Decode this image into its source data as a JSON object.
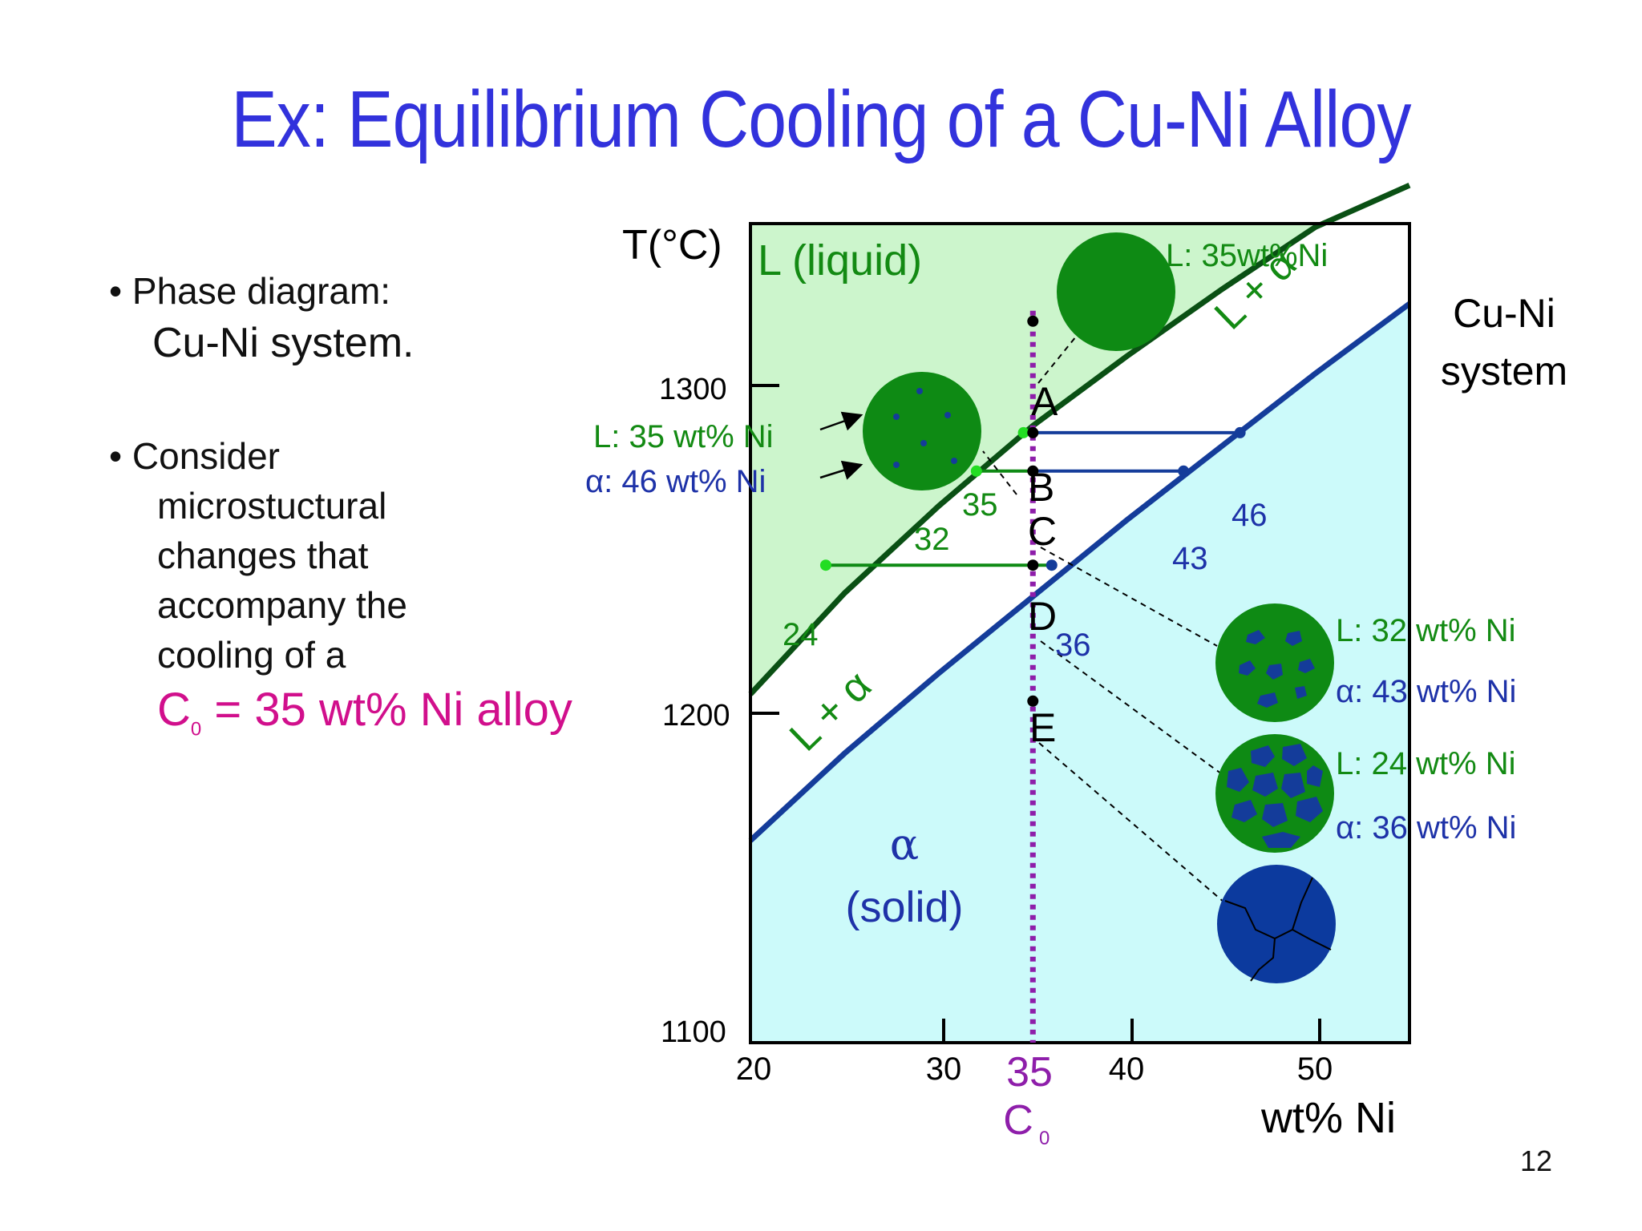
{
  "slide": {
    "title": "Ex:  Equilibrium Cooling of a Cu-Ni Alloy",
    "bullets": [
      {
        "marker": "•",
        "text": "Phase diagram:"
      },
      {
        "text": "Cu-Ni system."
      },
      {
        "marker": "•",
        "text": "Consider"
      },
      {
        "text": "microstuctural"
      },
      {
        "text": "changes that"
      },
      {
        "text": "accompany the"
      },
      {
        "text": "cooling of a"
      }
    ],
    "alloy": {
      "c": "C",
      "sub": "0",
      "rest": " = 35 wt% Ni alloy"
    },
    "page_number": "12"
  },
  "colors": {
    "title": "#3232dc",
    "liquid_region": "#ccf5cc",
    "solid_region": "#ccfafa",
    "liquidus": "#0a5014",
    "solidus": "#143c9a",
    "green_text": "#138a13",
    "blue_text": "#1e32a8",
    "magenta": "#d10f8c",
    "composition_line": "#8e1eaa",
    "liquid_grain": "#0e8a14",
    "solid_grain": "#0c3a9e",
    "bright_green_point": "#22dd22"
  },
  "diagram": {
    "y_axis_label": "T(°C)",
    "x_axis_label": "wt% Ni",
    "x_ticks": [
      "20",
      "30",
      "40",
      "50"
    ],
    "y_ticks": [
      "1300",
      "1200",
      "1100"
    ],
    "c0_value": "35",
    "c0_label": {
      "c": "C",
      "sub": "0"
    },
    "region_liquid": "L (liquid)",
    "region_two_phase": "L + α",
    "region_solid_symbol": "α",
    "region_solid_word": "(solid)",
    "system_label": [
      "Cu-Ni",
      "system"
    ],
    "points": [
      "A",
      "B",
      "C",
      "D",
      "E"
    ],
    "tie_lines": [
      {
        "point": "B",
        "liquid": "35",
        "solid": "46"
      },
      {
        "point": "C",
        "liquid": "32",
        "solid": "43"
      },
      {
        "point": "D",
        "liquid": "24",
        "solid": "36"
      }
    ],
    "annotations": {
      "a": "L: 35wt%Ni",
      "b_liquid": "L: 35 wt% Ni",
      "b_solid": "α: 46 wt% Ni",
      "c_liquid": "L: 32 wt% Ni",
      "c_solid": "α: 43 wt% Ni",
      "d_liquid": "L: 24 wt% Ni",
      "d_solid": "α: 36 wt% Ni"
    },
    "microstructure_icons": [
      "liquid-grain",
      "liquid-with-alpha-nuclei",
      "liquid-with-alpha-grains",
      "liquid-with-large-alpha-grains",
      "solid-alpha-grains"
    ]
  },
  "chart_data": {
    "type": "line",
    "title": "",
    "xlabel": "wt% Ni",
    "ylabel": "T(°C)",
    "xlim": [
      20,
      55
    ],
    "ylim": [
      1100,
      1335
    ],
    "series": [
      {
        "x": [
          20,
          25,
          30,
          35,
          40,
          45,
          50,
          55
        ],
        "y": [
          1200,
          1229,
          1254,
          1277,
          1297,
          1316,
          1334,
          1346
        ]
      },
      {
        "x": [
          20,
          25,
          30,
          35,
          40,
          45,
          50,
          55
        ],
        "y": [
          1158,
          1183,
          1206,
          1228,
          1250,
          1271,
          1292,
          1312
        ]
      }
    ],
    "composition_line": {
      "x": 35,
      "y": [
        1100,
        1310
      ]
    },
    "state_points": [
      {
        "label": "A",
        "x": 35,
        "y": 1307
      },
      {
        "label": "B",
        "x": 35,
        "y": 1275
      },
      {
        "label": "C",
        "x": 35,
        "y": 1264
      },
      {
        "label": "D",
        "x": 35,
        "y": 1237
      },
      {
        "label": "E",
        "x": 35,
        "y": 1198
      }
    ],
    "tie_lines": [
      {
        "T": 1275,
        "liquid": 35,
        "solid": 46
      },
      {
        "T": 1264,
        "liquid": 32,
        "solid": 43
      },
      {
        "T": 1237,
        "liquid": 24,
        "solid": 36
      }
    ]
  }
}
